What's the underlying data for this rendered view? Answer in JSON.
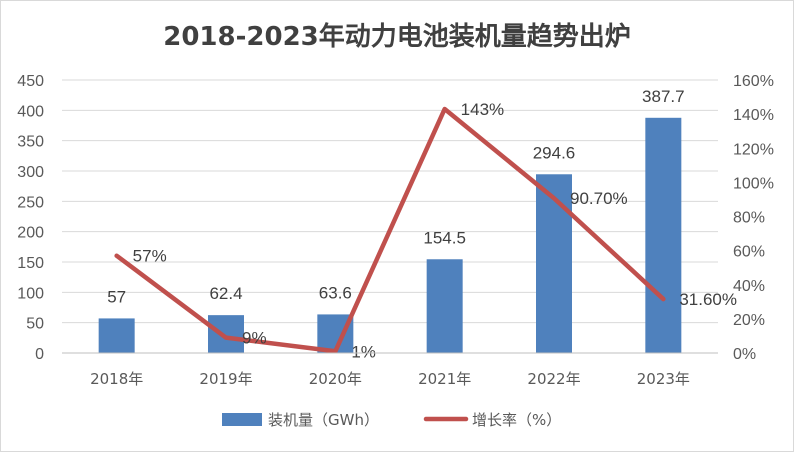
{
  "chart_data": {
    "type": "bar+line",
    "title": "2018-2023年动力电池装机量趋势出炉",
    "categories": [
      "2018年",
      "2019年",
      "2020年",
      "2021年",
      "2022年",
      "2023年"
    ],
    "series": [
      {
        "name": "装机量（GWh）",
        "type": "bar",
        "axis": "left",
        "color": "#4F81BD",
        "values": [
          57,
          62.4,
          63.6,
          154.5,
          294.6,
          387.7
        ],
        "labels": [
          "57",
          "62.4",
          "63.6",
          "154.5",
          "294.6",
          "387.7"
        ]
      },
      {
        "name": "增长率（%）",
        "type": "line",
        "axis": "right",
        "color": "#C0504D",
        "values": [
          57,
          9,
          1,
          143,
          90.7,
          31.6
        ],
        "labels": [
          "57%",
          "9%",
          "1%",
          "143%",
          "90.70%",
          "31.60%"
        ]
      }
    ],
    "y_left": {
      "min": 0,
      "max": 450,
      "ticks": [
        "0",
        "50",
        "100",
        "150",
        "200",
        "250",
        "300",
        "350",
        "400",
        "450"
      ]
    },
    "y_right": {
      "min": 0,
      "max": 160,
      "ticks": [
        "0%",
        "20%",
        "40%",
        "60%",
        "80%",
        "100%",
        "120%",
        "140%",
        "160%"
      ]
    },
    "grid": true,
    "legend_position": "bottom"
  }
}
